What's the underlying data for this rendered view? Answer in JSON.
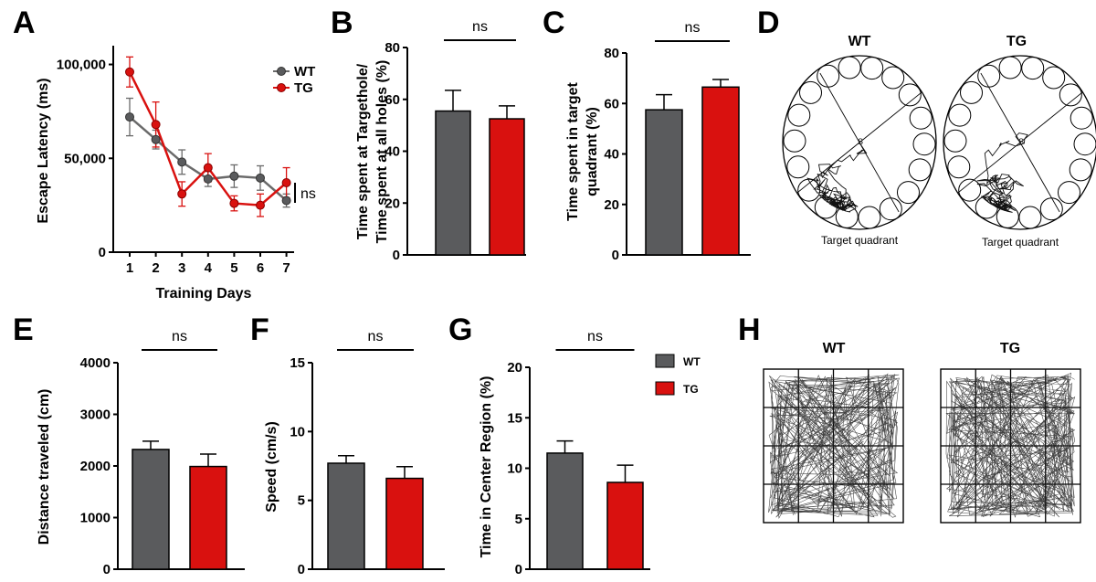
{
  "colors": {
    "wt": "#5a5b5d",
    "tg": "#d9110f",
    "line_wt": "#6a6a6a"
  },
  "panels": {
    "A": {
      "label": "A"
    },
    "B": {
      "label": "B"
    },
    "C": {
      "label": "C"
    },
    "D": {
      "label": "D"
    },
    "E": {
      "label": "E"
    },
    "F": {
      "label": "F"
    },
    "G": {
      "label": "G"
    },
    "H": {
      "label": "H"
    }
  },
  "legend": {
    "wt": "WT",
    "tg": "TG"
  },
  "ns_label": "ns",
  "track_panels": {
    "D": {
      "wt_title": "WT",
      "tg_title": "TG",
      "target_label": "Target quadrant"
    },
    "H": {
      "wt_title": "WT",
      "tg_title": "TG"
    }
  },
  "chart_data": [
    {
      "id": "A",
      "type": "line",
      "xlabel": "Training Days",
      "ylabel": "Escape Latency (ms)",
      "x": [
        1,
        2,
        3,
        4,
        5,
        6,
        7
      ],
      "ylim": [
        0,
        110000
      ],
      "yticks": [
        0,
        50000,
        100000
      ],
      "ytick_labels": [
        "0",
        "50,000",
        "100,000"
      ],
      "series": [
        {
          "name": "WT",
          "values": [
            72000,
            60000,
            48000,
            39000,
            40500,
            39500,
            27500
          ],
          "err": [
            10000,
            5000,
            6500,
            4000,
            6000,
            6500,
            3500
          ]
        },
        {
          "name": "TG",
          "values": [
            96000,
            68000,
            31000,
            45000,
            26000,
            25000,
            37000
          ],
          "err": [
            8000,
            12000,
            6500,
            7500,
            4000,
            6000,
            8000
          ]
        }
      ],
      "annotation": "ns"
    },
    {
      "id": "B",
      "type": "bar",
      "ylabel": "Time spent at Targethole/ Time spent at all holes (%)",
      "ylabel_lines": [
        "Time spent at Targethole/",
        "Time spent at all holes (%)"
      ],
      "categories": [
        "WT",
        "TG"
      ],
      "values": [
        55.5,
        52.5
      ],
      "err": [
        8,
        5
      ],
      "ylim": [
        0,
        80
      ],
      "yticks": [
        0,
        20,
        40,
        60,
        80
      ],
      "annotation": "ns"
    },
    {
      "id": "C",
      "type": "bar",
      "ylabel": "Time spent in target quadrant (%)",
      "ylabel_lines": [
        "Time spent in target",
        "quadrant (%)"
      ],
      "categories": [
        "WT",
        "TG"
      ],
      "values": [
        57.5,
        66.5
      ],
      "err": [
        6,
        3
      ],
      "ylim": [
        0,
        80
      ],
      "yticks": [
        0,
        20,
        40,
        60,
        80
      ],
      "annotation": "ns"
    },
    {
      "id": "E",
      "type": "bar",
      "ylabel": "Distance traveled (cm)",
      "categories": [
        "WT",
        "TG"
      ],
      "values": [
        2320,
        1990
      ],
      "err": [
        160,
        240
      ],
      "ylim": [
        0,
        4000
      ],
      "yticks": [
        0,
        1000,
        2000,
        3000,
        4000
      ],
      "annotation": "ns"
    },
    {
      "id": "F",
      "type": "bar",
      "ylabel": "Speed (cm/s)",
      "categories": [
        "WT",
        "TG"
      ],
      "values": [
        7.7,
        6.6
      ],
      "err": [
        0.55,
        0.85
      ],
      "ylim": [
        0,
        15
      ],
      "yticks": [
        0,
        5,
        10,
        15
      ],
      "annotation": "ns"
    },
    {
      "id": "G",
      "type": "bar",
      "ylabel": "Time in Center Region (%)",
      "categories": [
        "WT",
        "TG"
      ],
      "values": [
        11.5,
        8.6
      ],
      "err": [
        1.2,
        1.7
      ],
      "ylim": [
        0,
        20
      ],
      "yticks": [
        0,
        5,
        10,
        15,
        20
      ],
      "annotation": "ns",
      "legend": [
        "WT",
        "TG"
      ]
    }
  ]
}
